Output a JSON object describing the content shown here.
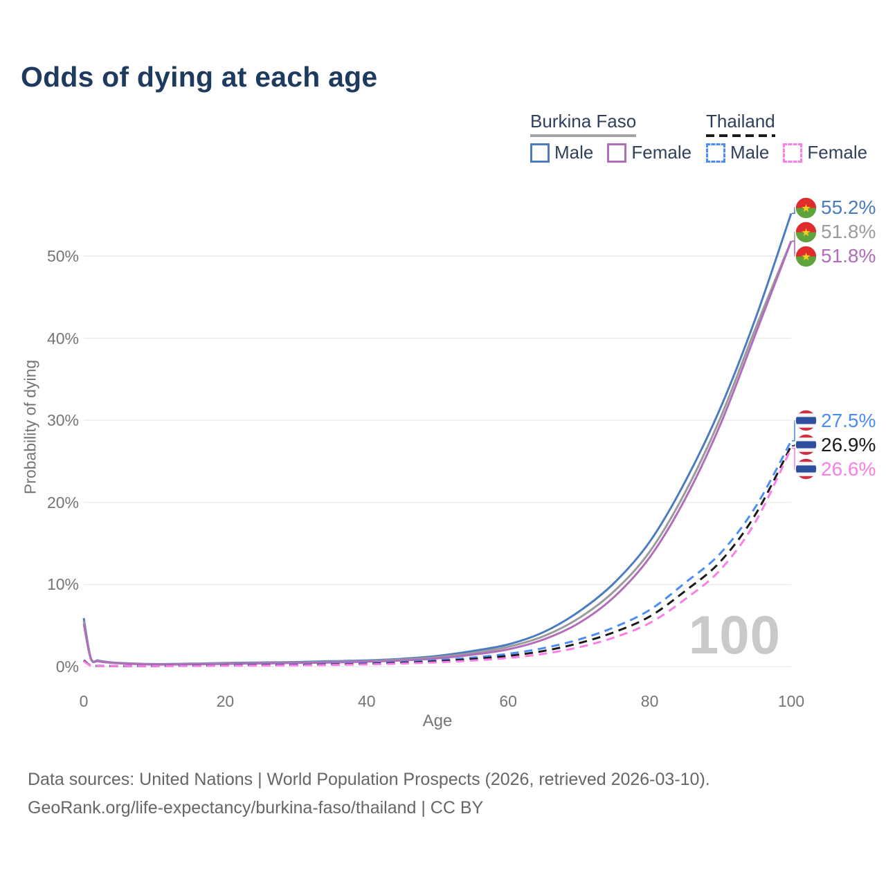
{
  "title": "Odds of dying at each age",
  "watermark_age": "100",
  "legend": {
    "groups": [
      {
        "name": "Burkina Faso",
        "line_style": "solid",
        "underline_color": "#a3a3a3",
        "items": [
          {
            "label": "Male",
            "color": "#4b7bc0"
          },
          {
            "label": "Female",
            "color": "#b16cba"
          }
        ]
      },
      {
        "name": "Thailand",
        "line_style": "dashed",
        "underline_color": "#1b1b1b",
        "items": [
          {
            "label": "Male",
            "color": "#4c8df5"
          },
          {
            "label": "Female",
            "color": "#fb7de9"
          }
        ]
      }
    ]
  },
  "footer": {
    "line1": "Data sources: United Nations | World Population Prospects (2026, retrieved 2026-03-10).",
    "line2": "GeoRank.org/life-expectancy/burkina-faso/thailand | CC BY"
  },
  "chart_data": {
    "type": "line",
    "title": "Odds of dying at each age",
    "xlabel": "Age",
    "ylabel": "Probability of dying",
    "xlim": [
      0,
      100
    ],
    "ylim_percent": [
      0,
      56
    ],
    "grid": "horizontal",
    "x_ticks": [
      {
        "v": 0,
        "label": "0"
      },
      {
        "v": 20,
        "label": "20"
      },
      {
        "v": 40,
        "label": "40"
      },
      {
        "v": 60,
        "label": "60"
      },
      {
        "v": 80,
        "label": "80"
      },
      {
        "v": 100,
        "label": "100"
      }
    ],
    "y_ticks": [
      {
        "v": 0,
        "label": "0%"
      },
      {
        "v": 10,
        "label": "10%"
      },
      {
        "v": 20,
        "label": "20%"
      },
      {
        "v": 30,
        "label": "30%"
      },
      {
        "v": 40,
        "label": "40%"
      },
      {
        "v": 50,
        "label": "50%"
      }
    ],
    "ages": [
      0,
      1,
      2,
      3,
      5,
      10,
      15,
      20,
      25,
      30,
      35,
      40,
      45,
      50,
      55,
      60,
      65,
      70,
      75,
      80,
      85,
      90,
      95,
      100
    ],
    "series": [
      {
        "name": "Burkina Faso — Male",
        "country": "burkina-faso",
        "sex": "male",
        "color": "#4b7bc0",
        "dash": false,
        "end_label": "55.2%",
        "values": [
          5.9,
          1.05,
          0.75,
          0.6,
          0.45,
          0.3,
          0.35,
          0.45,
          0.5,
          0.55,
          0.65,
          0.75,
          0.95,
          1.3,
          1.9,
          2.7,
          4.2,
          6.7,
          10.2,
          15.2,
          22.5,
          31.5,
          42.5,
          55.2
        ]
      },
      {
        "name": "Burkina Faso — Both sexes",
        "country": "burkina-faso",
        "sex": "both",
        "color": "#9b9b9b",
        "dash": false,
        "end_label": "51.8%",
        "values": [
          5.55,
          1.0,
          0.7,
          0.55,
          0.42,
          0.27,
          0.3,
          0.4,
          0.44,
          0.49,
          0.57,
          0.67,
          0.85,
          1.15,
          1.65,
          2.4,
          3.7,
          5.9,
          9.2,
          14.0,
          21.2,
          30.3,
          41.3,
          51.85
        ]
      },
      {
        "name": "Burkina Faso — Female",
        "country": "burkina-faso",
        "sex": "female",
        "color": "#b16cba",
        "dash": false,
        "end_label": "51.8%",
        "values": [
          5.2,
          0.95,
          0.65,
          0.52,
          0.4,
          0.25,
          0.27,
          0.33,
          0.38,
          0.44,
          0.5,
          0.6,
          0.75,
          1.0,
          1.45,
          2.1,
          3.3,
          5.3,
          8.5,
          13.3,
          20.4,
          29.5,
          40.6,
          51.8
        ]
      },
      {
        "name": "Thailand — Male",
        "country": "thailand",
        "sex": "male",
        "color": "#4c8df5",
        "dash": true,
        "end_label": "27.5%",
        "values": [
          0.8,
          0.12,
          0.09,
          0.08,
          0.07,
          0.08,
          0.12,
          0.17,
          0.2,
          0.24,
          0.3,
          0.4,
          0.55,
          0.78,
          1.1,
          1.55,
          2.25,
          3.3,
          4.8,
          6.9,
          10.2,
          13.8,
          19.5,
          27.5
        ]
      },
      {
        "name": "Thailand — Both sexes",
        "country": "thailand",
        "sex": "both",
        "color": "#1b1b1b",
        "dash": true,
        "end_label": "26.9%",
        "values": [
          0.72,
          0.11,
          0.08,
          0.07,
          0.06,
          0.07,
          0.1,
          0.14,
          0.17,
          0.2,
          0.25,
          0.33,
          0.46,
          0.65,
          0.92,
          1.3,
          1.9,
          2.85,
          4.2,
          6.1,
          9.2,
          12.8,
          18.6,
          26.9
        ]
      },
      {
        "name": "Thailand — Female",
        "country": "thailand",
        "sex": "female",
        "color": "#fb7de9",
        "dash": true,
        "end_label": "26.6%",
        "values": [
          0.65,
          0.1,
          0.07,
          0.06,
          0.055,
          0.06,
          0.08,
          0.11,
          0.13,
          0.16,
          0.2,
          0.27,
          0.37,
          0.52,
          0.74,
          1.05,
          1.55,
          2.35,
          3.55,
          5.3,
          8.2,
          11.8,
          17.7,
          26.6
        ]
      }
    ]
  }
}
